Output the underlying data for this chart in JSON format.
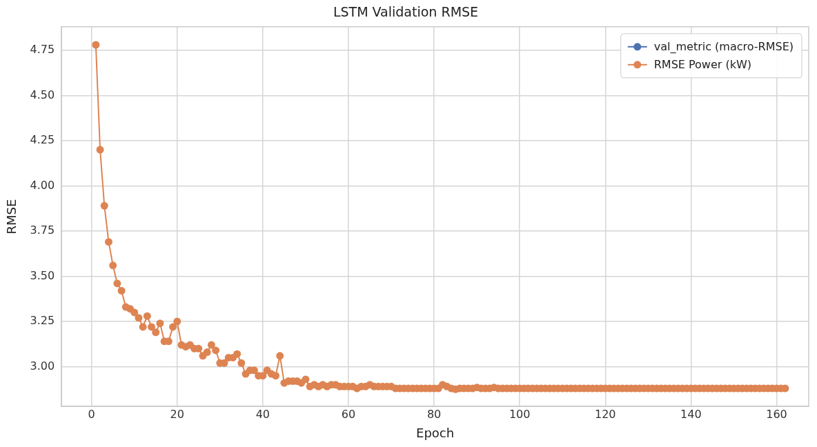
{
  "chart_data": {
    "type": "line",
    "title": "LSTM Validation RMSE",
    "xlabel": "Epoch",
    "ylabel": "RMSE",
    "x": [
      1,
      2,
      3,
      4,
      5,
      6,
      7,
      8,
      9,
      10,
      11,
      12,
      13,
      14,
      15,
      16,
      17,
      18,
      19,
      20,
      21,
      22,
      23,
      24,
      25,
      26,
      27,
      28,
      29,
      30,
      31,
      32,
      33,
      34,
      35,
      36,
      37,
      38,
      39,
      40,
      41,
      42,
      43,
      44,
      45,
      46,
      47,
      48,
      49,
      50,
      51,
      52,
      53,
      54,
      55,
      56,
      57,
      58,
      59,
      60,
      61,
      62,
      63,
      64,
      65,
      66,
      67,
      68,
      69,
      70,
      71,
      72,
      73,
      74,
      75,
      76,
      77,
      78,
      79,
      80,
      81,
      82,
      83,
      84,
      85,
      86,
      87,
      88,
      89,
      90,
      91,
      92,
      93,
      94,
      95,
      96,
      97,
      98,
      99,
      100,
      101,
      102,
      103,
      104,
      105,
      106,
      107,
      108,
      109,
      110,
      111,
      112,
      113,
      114,
      115,
      116,
      117,
      118,
      119,
      120,
      121,
      122,
      123,
      124,
      125,
      126,
      127,
      128,
      129,
      130,
      131,
      132,
      133,
      134,
      135,
      136,
      137,
      138,
      139,
      140,
      141,
      142,
      143,
      144,
      145,
      146,
      147,
      148,
      149,
      150,
      151,
      152,
      153,
      154,
      155,
      156,
      157,
      158,
      159,
      160,
      161,
      162
    ],
    "series": [
      {
        "name": "val_metric (macro-RMSE)",
        "color": "#4c72b0",
        "values": [
          null,
          null,
          null,
          null,
          null,
          null,
          null,
          null,
          null,
          null,
          null,
          null,
          null,
          null,
          null,
          null,
          null,
          null,
          null,
          null,
          null,
          null,
          null,
          null,
          null,
          null,
          null,
          null,
          null,
          null,
          null,
          null,
          null,
          null,
          null,
          null,
          null,
          null,
          null,
          null,
          null,
          null,
          null,
          null,
          null,
          null,
          null,
          null,
          null,
          null,
          null,
          null,
          null,
          null,
          null,
          null,
          null,
          null,
          null,
          null,
          null,
          null,
          null,
          null,
          null,
          null,
          null,
          null,
          null,
          null,
          null,
          null,
          null,
          null,
          null,
          null,
          null,
          null,
          null,
          null,
          null,
          null,
          null,
          null,
          null,
          null,
          null,
          null,
          null,
          null,
          null,
          null,
          null,
          null,
          null,
          null,
          null,
          null,
          null,
          null,
          null,
          null,
          null,
          null,
          null,
          null,
          null,
          null,
          null,
          null,
          null,
          null,
          null,
          null,
          null,
          null,
          null,
          null,
          null,
          null,
          null,
          null,
          null,
          null,
          null,
          null,
          null,
          null,
          null,
          null,
          null,
          null,
          null,
          null,
          null,
          null,
          null,
          null,
          null,
          null,
          null,
          null,
          null,
          null,
          null,
          null,
          null,
          null,
          null,
          null,
          null,
          null,
          null,
          null,
          null,
          null,
          null,
          null,
          null,
          null,
          null,
          null
        ]
      },
      {
        "name": "RMSE Power (kW)",
        "color": "#dd8452",
        "values": [
          4.78,
          4.2,
          3.89,
          3.69,
          3.56,
          3.46,
          3.42,
          3.33,
          3.32,
          3.3,
          3.27,
          3.22,
          3.28,
          3.22,
          3.19,
          3.24,
          3.14,
          3.14,
          3.22,
          3.25,
          3.12,
          3.11,
          3.12,
          3.1,
          3.1,
          3.06,
          3.08,
          3.12,
          3.09,
          3.02,
          3.02,
          3.05,
          3.05,
          3.07,
          3.02,
          2.96,
          2.98,
          2.98,
          2.95,
          2.95,
          2.98,
          2.96,
          2.95,
          3.06,
          2.91,
          2.92,
          2.92,
          2.92,
          2.91,
          2.93,
          2.89,
          2.9,
          2.89,
          2.9,
          2.89,
          2.9,
          2.9,
          2.89,
          2.89,
          2.89,
          2.89,
          2.88,
          2.89,
          2.89,
          2.9,
          2.89,
          2.89,
          2.89,
          2.89,
          2.89,
          2.88,
          2.88,
          2.88,
          2.88,
          2.88,
          2.88,
          2.88,
          2.88,
          2.88,
          2.88,
          2.88,
          2.9,
          2.89,
          2.88,
          2.875,
          2.88,
          2.88,
          2.88,
          2.88,
          2.885,
          2.88,
          2.88,
          2.88,
          2.885,
          2.88,
          2.88,
          2.88,
          2.88,
          2.88,
          2.88,
          2.88,
          2.88,
          2.88,
          2.88,
          2.88,
          2.88,
          2.88,
          2.88,
          2.88,
          2.88,
          2.88,
          2.88,
          2.88,
          2.88,
          2.88,
          2.88,
          2.88,
          2.88,
          2.88,
          2.88,
          2.88,
          2.88,
          2.88,
          2.88,
          2.88,
          2.88,
          2.88,
          2.88,
          2.88,
          2.88,
          2.88,
          2.88,
          2.88,
          2.88,
          2.88,
          2.88,
          2.88,
          2.88,
          2.88,
          2.88,
          2.88,
          2.88,
          2.88,
          2.88,
          2.88,
          2.88,
          2.88,
          2.88,
          2.88,
          2.88,
          2.88,
          2.88,
          2.88,
          2.88,
          2.88,
          2.88,
          2.88,
          2.88,
          2.88,
          2.88,
          2.88,
          2.88
        ]
      }
    ],
    "xlim": [
      -7,
      167.5
    ],
    "xticks": [
      0,
      20,
      40,
      60,
      80,
      100,
      120,
      140,
      160
    ],
    "ylim": [
      2.78,
      4.88
    ],
    "yticks": [
      {
        "value": 3,
        "label": "3.00"
      },
      {
        "value": 3.25,
        "label": "3.25"
      },
      {
        "value": 3.5,
        "label": "3.50"
      },
      {
        "value": 3.75,
        "label": "3.75"
      },
      {
        "value": 4,
        "label": "4.00"
      },
      {
        "value": 4.25,
        "label": "4.25"
      },
      {
        "value": 4.5,
        "label": "4.50"
      },
      {
        "value": 4.75,
        "label": "4.75"
      }
    ],
    "grid": true,
    "legend": "top right",
    "marker": "circle",
    "line_style": "solid"
  }
}
